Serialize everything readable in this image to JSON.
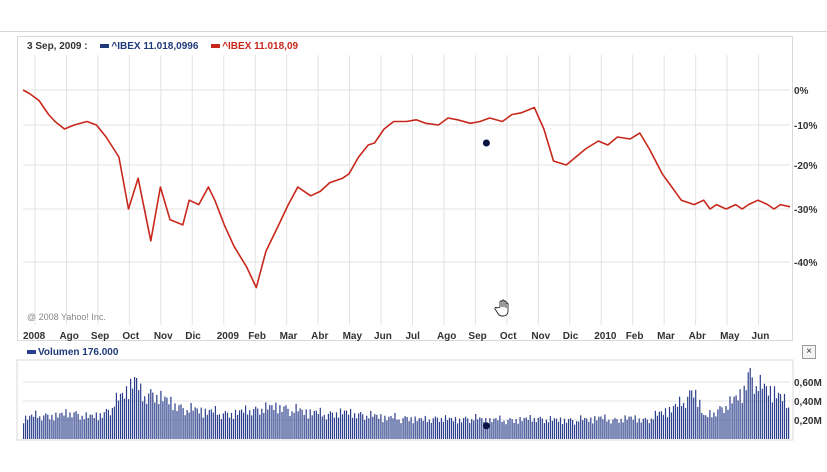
{
  "legend": {
    "date": "3 Sep, 2009 :",
    "series1": "^IBEX 11.018,0996",
    "series2": "^IBEX 11.018,09"
  },
  "copyright": "@ 2008 Yahoo! Inc.",
  "volume": {
    "label": "Volumen 176.000",
    "close": "×",
    "ticks": [
      "0,60M",
      "0,40M",
      "0,20M"
    ]
  },
  "colors": {
    "price": "#c8281c",
    "volume": "#2b3f8c",
    "marker": "#0b1340",
    "grid": "#e3e3e3"
  },
  "chart_data": [
    {
      "type": "line",
      "x_tick_labels": [
        "2008",
        "Ago",
        "Sep",
        "Oct",
        "Nov",
        "Dic",
        "2009",
        "Feb",
        "Mar",
        "Abr",
        "May",
        "Jun",
        "Jul",
        "Ago",
        "Sep",
        "Oct",
        "Nov",
        "Dic",
        "2010",
        "Feb",
        "Mar",
        "Abr",
        "May",
        "Jun"
      ],
      "y_tick_labels": [
        "0%",
        "-10%",
        "-20%",
        "-30%",
        "-40%"
      ],
      "ylim": [
        -48,
        2
      ],
      "grid": true,
      "series": [
        {
          "name": "^IBEX",
          "color": "#c8281c",
          "x": [
            0,
            0.2,
            0.5,
            0.8,
            1,
            1.3,
            1.6,
            2,
            2.3,
            2.6,
            3,
            3.3,
            3.6,
            4,
            4.3,
            4.6,
            5,
            5.2,
            5.5,
            5.8,
            6,
            6.3,
            6.6,
            7,
            7.3,
            7.6,
            8,
            8.3,
            8.6,
            9,
            9.3,
            9.6,
            10,
            10.2,
            10.5,
            10.8,
            11,
            11.3,
            11.6,
            12,
            12.3,
            12.6,
            13,
            13.3,
            13.6,
            14,
            14.3,
            14.6,
            15,
            15.3,
            15.6,
            16,
            16.3,
            16.6,
            17,
            17.3,
            17.6,
            18,
            18.3,
            18.6,
            19,
            19.3,
            19.6,
            20,
            20.3,
            20.6,
            21,
            21.3,
            21.5,
            21.7,
            22,
            22.3,
            22.5,
            22.7,
            23,
            23.3,
            23.5,
            23.7,
            24
          ],
          "y": [
            0,
            -1,
            -3,
            -7,
            -9,
            -11,
            -10,
            -9,
            -10,
            -13,
            -18,
            -30,
            -23,
            -36,
            -25,
            -32,
            -33,
            -28,
            -29,
            -25,
            -28,
            -33,
            -37,
            -41,
            -45,
            -38,
            -33,
            -29,
            -25,
            -27,
            -26,
            -24,
            -23,
            -22,
            -18,
            -15,
            -14.5,
            -11,
            -9,
            -9,
            -8.5,
            -9.5,
            -10,
            -8,
            -8.5,
            -9.5,
            -9,
            -8,
            -9,
            -7,
            -6.5,
            -5,
            -11,
            -19,
            -20,
            -18,
            -16,
            -14,
            -15,
            -13,
            -13.5,
            -12,
            -16,
            -22,
            -25,
            -28,
            -29,
            -28,
            -30,
            -29,
            -30,
            -29,
            -30,
            -29,
            -28,
            -29,
            -30,
            -29,
            -29.5
          ],
          "marker": {
            "x": 14.5,
            "y": -14.5
          }
        }
      ]
    },
    {
      "type": "bar",
      "title": "Volumen",
      "ylim": [
        0,
        0.7
      ],
      "y_tick_labels": [
        "0,60M",
        "0,40M",
        "0,20M"
      ],
      "color": "#2b3f8c",
      "x": [
        0,
        0.5,
        1,
        1.5,
        2,
        2.5,
        3,
        3.3,
        3.5,
        3.7,
        4,
        4.5,
        5,
        5.5,
        6,
        6.5,
        7,
        7.5,
        8,
        8.5,
        9,
        9.5,
        10,
        10.5,
        11,
        11.5,
        12,
        12.5,
        13,
        13.5,
        14,
        14.5,
        15,
        15.5,
        16,
        16.5,
        17,
        17.5,
        18,
        18.5,
        19,
        19.5,
        20,
        20.5,
        21,
        21.3,
        21.5,
        21.7,
        22,
        22.5,
        22.7,
        23,
        23.5,
        24
      ],
      "values": [
        0.22,
        0.25,
        0.24,
        0.28,
        0.23,
        0.26,
        0.42,
        0.55,
        0.62,
        0.45,
        0.48,
        0.4,
        0.32,
        0.3,
        0.28,
        0.26,
        0.3,
        0.32,
        0.34,
        0.3,
        0.28,
        0.26,
        0.28,
        0.26,
        0.24,
        0.22,
        0.22,
        0.2,
        0.22,
        0.2,
        0.22,
        0.2,
        0.2,
        0.2,
        0.22,
        0.2,
        0.2,
        0.2,
        0.22,
        0.2,
        0.22,
        0.2,
        0.28,
        0.35,
        0.52,
        0.22,
        0.26,
        0.3,
        0.35,
        0.48,
        0.7,
        0.55,
        0.5,
        0.32
      ],
      "marker": {
        "x": 14.5,
        "y": 0.16
      }
    }
  ]
}
